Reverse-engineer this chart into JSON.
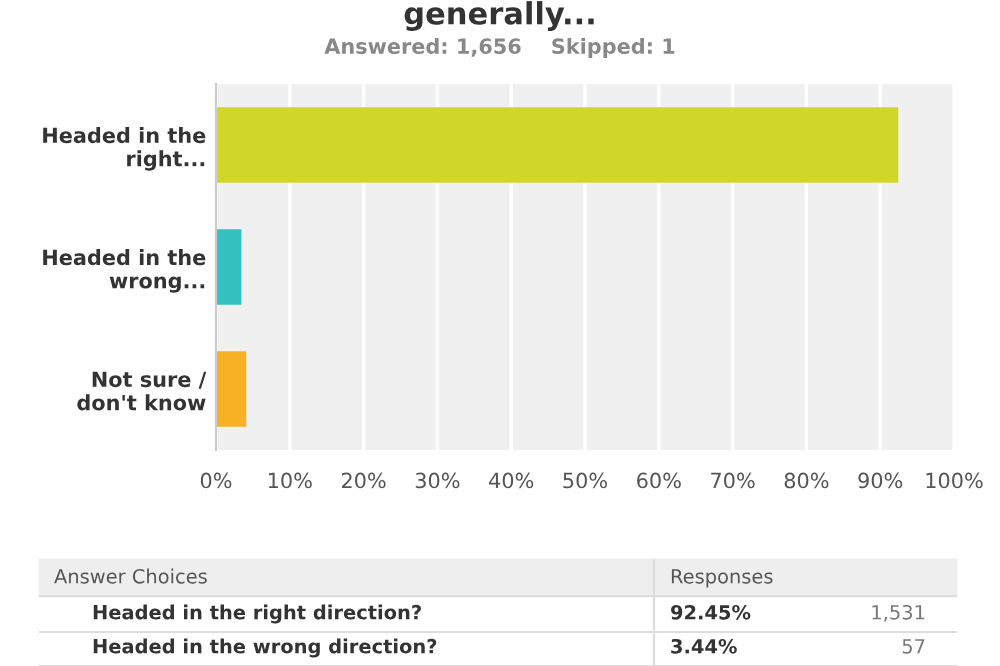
{
  "chart_data": {
    "type": "bar",
    "orientation": "horizontal",
    "title": "generally...",
    "subtitle": "Answered: 1,656    Skipped: 1",
    "categories": [
      "Headed in the\nright...",
      "Headed in the\nwrong...",
      "Not sure /\ndon't know"
    ],
    "values": [
      92.45,
      3.44,
      4.1
    ],
    "colors": [
      "#d0d72a",
      "#33c0bf",
      "#f7b125"
    ],
    "xlim": [
      0,
      100
    ],
    "xticks": [
      {
        "value": 0,
        "label": "0%"
      },
      {
        "value": 10,
        "label": "10%"
      },
      {
        "value": 20,
        "label": "20%"
      },
      {
        "value": 30,
        "label": "30%"
      },
      {
        "value": 40,
        "label": "40%"
      },
      {
        "value": 50,
        "label": "50%"
      },
      {
        "value": 60,
        "label": "60%"
      },
      {
        "value": 70,
        "label": "70%"
      },
      {
        "value": 80,
        "label": "80%"
      },
      {
        "value": 90,
        "label": "90%"
      },
      {
        "value": 100,
        "label": "100%"
      }
    ],
    "grid": "x",
    "annotations": [
      "Answer Choices",
      "Responses",
      "Headed in the right direction?",
      "92.45%",
      "1,531",
      "Headed in the wrong direction?",
      "3.44%",
      "57"
    ]
  }
}
